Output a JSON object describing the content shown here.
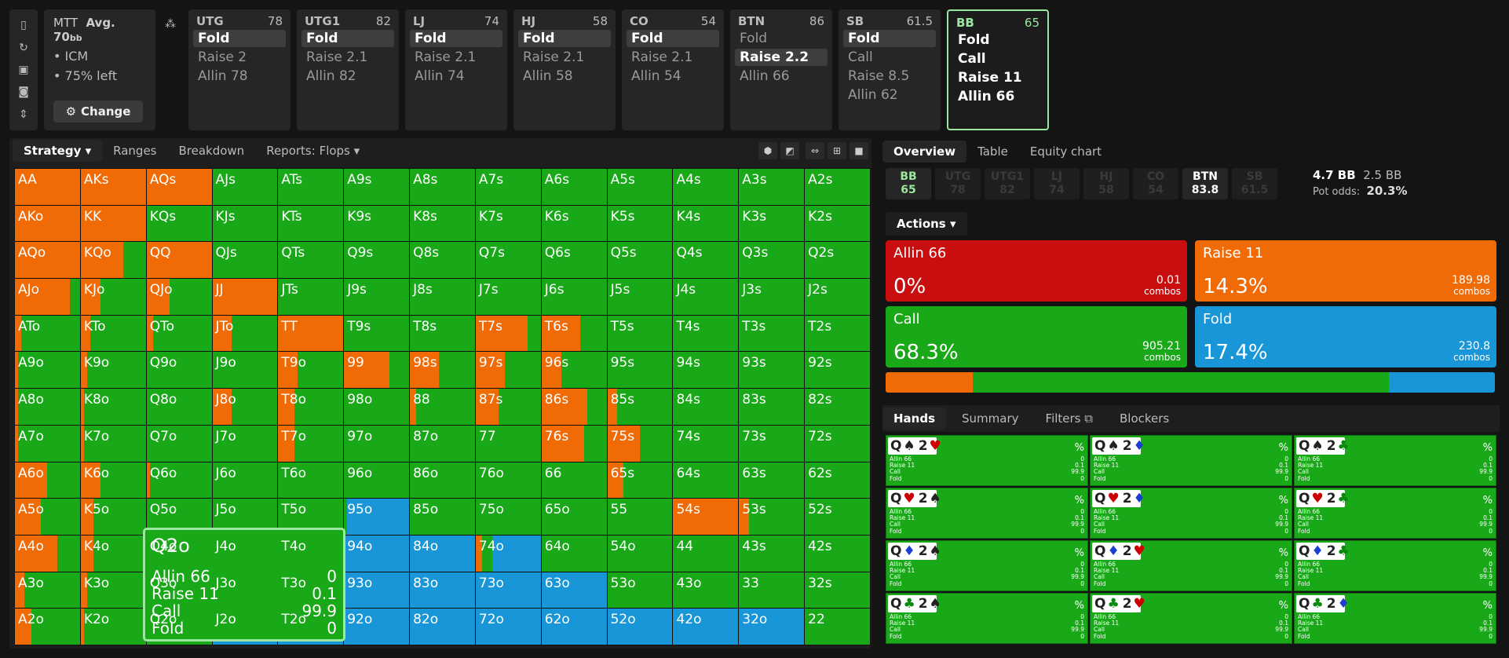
{
  "colors": {
    "raise": "#f06b06",
    "call": "#18a818",
    "fold": "#1996d8",
    "allin": "#c80e0e",
    "accent": "#9be7a0"
  },
  "left_toolbar": [
    "bookmark-icon",
    "history-icon",
    "save-icon",
    "gamepad-icon",
    "collapse-icon"
  ],
  "game": {
    "type": "MTT",
    "avg_label": "Avg. 70",
    "avg_unit": "bb",
    "items": [
      "ICM",
      "75% left"
    ],
    "change_label": "Change"
  },
  "positions": [
    {
      "name": "UTG",
      "stack": "78",
      "actions": [
        "Fold",
        "Raise 2",
        "Allin 78"
      ],
      "selected": 0
    },
    {
      "name": "UTG1",
      "stack": "82",
      "actions": [
        "Fold",
        "Raise 2.1",
        "Allin 82"
      ],
      "selected": 0
    },
    {
      "name": "LJ",
      "stack": "74",
      "actions": [
        "Fold",
        "Raise 2.1",
        "Allin 74"
      ],
      "selected": 0
    },
    {
      "name": "HJ",
      "stack": "58",
      "actions": [
        "Fold",
        "Raise 2.1",
        "Allin 58"
      ],
      "selected": 0
    },
    {
      "name": "CO",
      "stack": "54",
      "actions": [
        "Fold",
        "Raise 2.1",
        "Allin 54"
      ],
      "selected": 0
    },
    {
      "name": "BTN",
      "stack": "86",
      "actions": [
        "Fold",
        "Raise 2.2",
        "Allin 66"
      ],
      "selected": 1
    },
    {
      "name": "SB",
      "stack": "61.5",
      "actions": [
        "Fold",
        "Call",
        "Raise 8.5",
        "Allin 62"
      ],
      "selected": 0
    },
    {
      "name": "BB",
      "stack": "65",
      "actions": [
        "Fold",
        "Call",
        "Raise 11",
        "Allin 66"
      ],
      "selected": -1,
      "current": true
    }
  ],
  "left_tabs": [
    "Strategy",
    "Ranges",
    "Breakdown",
    "Reports: Flops"
  ],
  "grid": {
    "ranks": [
      "A",
      "K",
      "Q",
      "J",
      "T",
      "9",
      "8",
      "7",
      "6",
      "5",
      "4",
      "3",
      "2"
    ],
    "raise": [
      [
        1,
        1,
        1,
        0,
        0,
        0,
        0,
        0,
        0,
        0,
        0,
        0,
        0
      ],
      [
        1,
        1,
        0,
        0,
        0,
        0,
        0,
        0,
        0,
        0,
        0,
        0,
        0
      ],
      [
        1,
        0.65,
        1,
        0,
        0,
        0,
        0,
        0,
        0,
        0,
        0,
        0,
        0
      ],
      [
        0.85,
        0.3,
        0.35,
        1,
        0,
        0,
        0,
        0,
        0,
        0,
        0,
        0,
        0
      ],
      [
        0.1,
        0.15,
        0.1,
        0.3,
        1,
        0,
        0,
        0.8,
        0.6,
        0,
        0,
        0,
        0
      ],
      [
        0.05,
        0.1,
        0,
        0,
        0.3,
        0.7,
        0.45,
        0.45,
        0.3,
        0,
        0,
        0,
        0
      ],
      [
        0.05,
        0.05,
        0,
        0.3,
        0.25,
        0,
        0.1,
        0.35,
        0.7,
        0.15,
        0,
        0,
        0
      ],
      [
        0.05,
        0.05,
        0,
        0,
        0.25,
        0,
        0,
        0,
        0.65,
        0.5,
        0,
        0,
        0
      ],
      [
        0.5,
        0.3,
        0.05,
        0,
        0,
        0,
        0,
        0,
        0,
        0.25,
        0,
        0,
        0
      ],
      [
        0.4,
        0.2,
        0,
        0,
        0,
        0,
        0,
        0,
        0,
        0,
        1,
        0.15,
        0
      ],
      [
        0.65,
        0.2,
        0,
        0,
        0,
        0,
        0,
        0.1,
        0,
        0,
        0,
        0,
        0
      ],
      [
        0.15,
        0.1,
        0,
        0,
        0,
        0,
        0,
        0,
        0,
        0,
        0,
        0,
        0
      ],
      [
        0.25,
        0.05,
        0,
        0,
        0,
        0,
        0,
        0,
        0,
        0,
        0,
        0,
        0
      ]
    ],
    "fold": [
      [
        0,
        0,
        0,
        0,
        0,
        0,
        0,
        0,
        0,
        0,
        0,
        0,
        0
      ],
      [
        0,
        0,
        0,
        0,
        0,
        0,
        0,
        0,
        0,
        0,
        0,
        0,
        0
      ],
      [
        0,
        0,
        0,
        0,
        0,
        0,
        0,
        0,
        0,
        0,
        0,
        0,
        0
      ],
      [
        0,
        0,
        0,
        0,
        0,
        0,
        0,
        0,
        0,
        0,
        0,
        0,
        0
      ],
      [
        0,
        0,
        0,
        0,
        0,
        0,
        0,
        0,
        0,
        0,
        0,
        0,
        0
      ],
      [
        0,
        0,
        0,
        0,
        0,
        0,
        0,
        0,
        0,
        0,
        0,
        0,
        0
      ],
      [
        0,
        0,
        0,
        0,
        0,
        0,
        0,
        0,
        0,
        0,
        0,
        0,
        0
      ],
      [
        0,
        0,
        0,
        0,
        0,
        0,
        0,
        0,
        0,
        0,
        0,
        0,
        0
      ],
      [
        0,
        0,
        0,
        0,
        0,
        0,
        0,
        0,
        0,
        0,
        0,
        0,
        0
      ],
      [
        0,
        0,
        0,
        0,
        0,
        0.95,
        0,
        0,
        0,
        0,
        0,
        0,
        0
      ],
      [
        0,
        0,
        0,
        0,
        1,
        1,
        1,
        0.75,
        0,
        0,
        0,
        0,
        0
      ],
      [
        0,
        0,
        0,
        0,
        1,
        1,
        1,
        1,
        1,
        0,
        0,
        0,
        0
      ],
      [
        0,
        0,
        0,
        1,
        1,
        1,
        1,
        1,
        1,
        1,
        1,
        1,
        0
      ]
    ]
  },
  "tooltip": {
    "hand": "Q2o",
    "rows": [
      {
        "label": "Allin 66",
        "value": "0"
      },
      {
        "label": "Raise 11",
        "value": "0.1"
      },
      {
        "label": "Call",
        "value": "99.9"
      },
      {
        "label": "Fold",
        "value": "0"
      }
    ]
  },
  "right_tabs": [
    "Overview",
    "Table",
    "Equity chart"
  ],
  "badges": [
    {
      "name": "BB",
      "stack": "65",
      "state": "bb"
    },
    {
      "name": "UTG",
      "stack": "78",
      "state": "off"
    },
    {
      "name": "UTG1",
      "stack": "82",
      "state": "off"
    },
    {
      "name": "LJ",
      "stack": "74",
      "state": "off"
    },
    {
      "name": "HJ",
      "stack": "58",
      "state": "off"
    },
    {
      "name": "CO",
      "stack": "54",
      "state": "off"
    },
    {
      "name": "BTN",
      "stack": "83.8",
      "state": "on"
    },
    {
      "name": "SB",
      "stack": "61.5",
      "state": "off"
    }
  ],
  "pot": {
    "main": "4.7 BB",
    "secondary": "2.5 BB",
    "odds_label": "Pot odds:",
    "odds": "20.3%"
  },
  "actions_label": "Actions",
  "actions": [
    {
      "name": "Allin 66",
      "pct": "0%",
      "combos": "0.01",
      "combos_label": "combos",
      "color": "#c80e0e"
    },
    {
      "name": "Raise 11",
      "pct": "14.3%",
      "combos": "189.98",
      "combos_label": "combos",
      "color": "#f06b06"
    },
    {
      "name": "Call",
      "pct": "68.3%",
      "combos": "905.21",
      "combos_label": "combos",
      "color": "#18a818"
    },
    {
      "name": "Fold",
      "pct": "17.4%",
      "combos": "230.8",
      "combos_label": "combos",
      "color": "#1996d8"
    }
  ],
  "freq": {
    "raise": 14.3,
    "call": 68.3,
    "fold": 17.4
  },
  "hand_tabs": [
    "Hands",
    "Summary",
    "Filters",
    "Blockers"
  ],
  "hands": [
    {
      "c1": "Q",
      "s1": "♠",
      "k1": "#222",
      "c2": "2",
      "s2": "♥",
      "k2": "#c00"
    },
    {
      "c1": "Q",
      "s1": "♠",
      "k1": "#222",
      "c2": "2",
      "s2": "♦",
      "k2": "#1a3fd0"
    },
    {
      "c1": "Q",
      "s1": "♠",
      "k1": "#222",
      "c2": "2",
      "s2": "♣",
      "k2": "#0a8a0a"
    },
    {
      "c1": "Q",
      "s1": "♥",
      "k1": "#c00",
      "c2": "2",
      "s2": "♠",
      "k2": "#222"
    },
    {
      "c1": "Q",
      "s1": "♥",
      "k1": "#c00",
      "c2": "2",
      "s2": "♦",
      "k2": "#1a3fd0"
    },
    {
      "c1": "Q",
      "s1": "♥",
      "k1": "#c00",
      "c2": "2",
      "s2": "♣",
      "k2": "#0a8a0a"
    },
    {
      "c1": "Q",
      "s1": "♦",
      "k1": "#1a3fd0",
      "c2": "2",
      "s2": "♠",
      "k2": "#222"
    },
    {
      "c1": "Q",
      "s1": "♦",
      "k1": "#1a3fd0",
      "c2": "2",
      "s2": "♥",
      "k2": "#c00"
    },
    {
      "c1": "Q",
      "s1": "♦",
      "k1": "#1a3fd0",
      "c2": "2",
      "s2": "♣",
      "k2": "#0a8a0a"
    },
    {
      "c1": "Q",
      "s1": "♣",
      "k1": "#0a8a0a",
      "c2": "2",
      "s2": "♠",
      "k2": "#222"
    },
    {
      "c1": "Q",
      "s1": "♣",
      "k1": "#0a8a0a",
      "c2": "2",
      "s2": "♥",
      "k2": "#c00"
    },
    {
      "c1": "Q",
      "s1": "♣",
      "k1": "#0a8a0a",
      "c2": "2",
      "s2": "♦",
      "k2": "#1a3fd0"
    }
  ],
  "hand_stats": {
    "pct": "%",
    "rows": [
      {
        "label": "Allin 66",
        "value": "0"
      },
      {
        "label": "Raise 11",
        "value": "0.1"
      },
      {
        "label": "Call",
        "value": "99.9"
      },
      {
        "label": "Fold",
        "value": "0"
      }
    ]
  }
}
